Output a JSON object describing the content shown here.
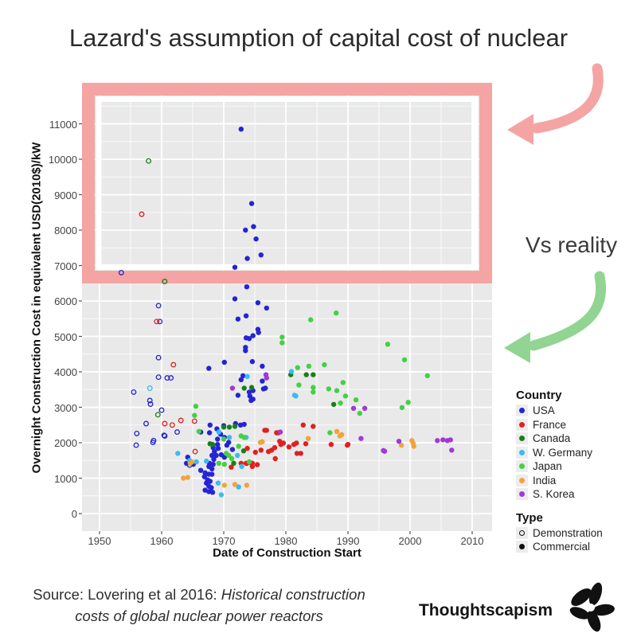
{
  "title": "Lazard's assumption of capital cost of nuclear",
  "annotations": {
    "vs_reality": "Vs reality"
  },
  "source": {
    "prefix": "Source: Lovering et al 2016: ",
    "italic_line1": "Historical construction",
    "italic_line2": "costs of global nuclear power reactors"
  },
  "logo": {
    "text": "Thoughtscapism"
  },
  "colors": {
    "panel_bg": "#e9e9e9",
    "gridline": "#ffffff",
    "highlight_frame_pink": "#f5a4a4",
    "highlight_inner_stroke": "#ffffff",
    "pink_arrow": "#f5a4a4",
    "green_arrow": "#92d492",
    "axis_text": "#444444",
    "title_text": "#2b2b2b"
  },
  "chart_data": {
    "type": "scatter",
    "title": "",
    "xlabel": "Date of Construction Start",
    "ylabel": "Overnight Construction Cost in equivalent USD(2010$)/kW",
    "xlim": [
      1947,
      2013
    ],
    "ylim": [
      0,
      12100
    ],
    "x_ticks": [
      1950,
      1960,
      1970,
      1980,
      1990,
      2000,
      2010
    ],
    "y_ticks": [
      0,
      1000,
      2000,
      3000,
      4000,
      5000,
      6000,
      7000,
      8000,
      9000,
      10000,
      11000
    ],
    "grid": "major-and-minor",
    "legend_position": "right",
    "legend": {
      "country_label": "Country",
      "type_label": "Type",
      "types": [
        {
          "label": "Demonstration",
          "style": "open"
        },
        {
          "label": "Commercial",
          "style": "filled"
        }
      ]
    },
    "highlight_region": {
      "y_from": 6500,
      "y_to": 12100,
      "meaning": "Lazard's assumed capital cost band vs real data below"
    },
    "series": [
      {
        "name": "USA",
        "color": "#2424d4",
        "demonstration": [
          [
            1953.5,
            6800
          ],
          [
            1959.5,
            5870
          ],
          [
            1959.7,
            5420
          ],
          [
            1959.5,
            4400
          ],
          [
            1959.5,
            3850
          ],
          [
            1960.9,
            3830
          ],
          [
            1961.5,
            3830
          ],
          [
            1955.5,
            3430
          ],
          [
            1958.1,
            3190
          ],
          [
            1958.2,
            3090
          ],
          [
            1960.0,
            2920
          ],
          [
            1957.5,
            2540
          ],
          [
            1956.0,
            2260
          ],
          [
            1960.4,
            2210
          ],
          [
            1962.5,
            2300
          ],
          [
            1958.7,
            2060
          ],
          [
            1955.9,
            1930
          ],
          [
            1958.6,
            2010
          ],
          [
            1964.5,
            1370
          ],
          [
            1960.5,
            2190
          ]
        ],
        "commercial": [
          [
            1972.8,
            10850
          ],
          [
            1974.5,
            8750
          ],
          [
            1974.8,
            8100
          ],
          [
            1973.5,
            8000
          ],
          [
            1975.2,
            7750
          ],
          [
            1976.0,
            7300
          ],
          [
            1973.8,
            7200
          ],
          [
            1971.8,
            6950
          ],
          [
            1973.7,
            6400
          ],
          [
            1971.8,
            6060
          ],
          [
            1975.5,
            5950
          ],
          [
            1976.9,
            5800
          ],
          [
            1973.6,
            5580
          ],
          [
            1972.3,
            5490
          ],
          [
            1975.5,
            5200
          ],
          [
            1975.6,
            5110
          ],
          [
            1974.7,
            5020
          ],
          [
            1973.6,
            4960
          ],
          [
            1974.1,
            4940
          ],
          [
            1973.5,
            4690
          ],
          [
            1973.5,
            4600
          ],
          [
            1970.1,
            4270
          ],
          [
            1974.6,
            4290
          ],
          [
            1976.2,
            4160
          ],
          [
            1967.6,
            4100
          ],
          [
            1973.1,
            3890
          ],
          [
            1972.8,
            3780
          ],
          [
            1976.2,
            3740
          ],
          [
            1976.7,
            3540
          ],
          [
            1972.3,
            3340
          ],
          [
            1974.1,
            3430
          ],
          [
            1974.7,
            3470
          ],
          [
            1976.4,
            3520
          ],
          [
            1974.2,
            3320
          ],
          [
            1974.7,
            3230
          ],
          [
            1974.4,
            3190
          ],
          [
            1966.3,
            2300
          ],
          [
            1967.7,
            2280
          ],
          [
            1968.9,
            2390
          ],
          [
            1967.8,
            2500
          ],
          [
            1970.0,
            2480
          ],
          [
            1971.9,
            2540
          ],
          [
            1972.7,
            2500
          ],
          [
            1973.3,
            2520
          ],
          [
            1969.5,
            2240
          ],
          [
            1969.0,
            2100
          ],
          [
            1970.1,
            2150
          ],
          [
            1964.2,
            1590
          ],
          [
            1964.0,
            1420
          ],
          [
            1965.1,
            1390
          ],
          [
            1966.3,
            1220
          ],
          [
            1968.1,
            1640
          ],
          [
            1968.5,
            1750
          ],
          [
            1968.3,
            1860
          ],
          [
            1969.1,
            1840
          ],
          [
            1968.8,
            1640
          ],
          [
            1967.7,
            1420
          ],
          [
            1968.3,
            1390
          ],
          [
            1967.6,
            1330
          ],
          [
            1968.1,
            1260
          ],
          [
            1967.0,
            1150
          ],
          [
            1967.6,
            1110
          ],
          [
            1968.1,
            1110
          ],
          [
            1966.9,
            1040
          ],
          [
            1967.4,
            950
          ],
          [
            1967.8,
            910
          ],
          [
            1967.2,
            860
          ],
          [
            1967.6,
            770
          ],
          [
            1968.0,
            730
          ],
          [
            1967.0,
            660
          ],
          [
            1967.6,
            620
          ],
          [
            1968.2,
            600
          ],
          [
            1970.5,
            1930
          ],
          [
            1970.8,
            2010
          ],
          [
            1971.4,
            1810
          ],
          [
            1969.0,
            1950
          ],
          [
            1969.6,
            1660
          ],
          [
            1970.1,
            1590
          ],
          [
            1968.4,
            1530
          ]
        ]
      },
      {
        "name": "France",
        "color": "#e02020",
        "demonstration": [
          [
            1956.8,
            8450
          ],
          [
            1959.2,
            5420
          ],
          [
            1961.9,
            4200
          ],
          [
            1960.5,
            2540
          ],
          [
            1961.7,
            2500
          ],
          [
            1963.1,
            2630
          ],
          [
            1965.3,
            2610
          ],
          [
            1965.4,
            1750
          ]
        ],
        "commercial": [
          [
            1973.8,
            1840
          ],
          [
            1975.1,
            1730
          ],
          [
            1976.0,
            1790
          ],
          [
            1977.2,
            1750
          ],
          [
            1977.7,
            1790
          ],
          [
            1978.2,
            1860
          ],
          [
            1978.3,
            1550
          ],
          [
            1979.0,
            2040
          ],
          [
            1979.2,
            1950
          ],
          [
            1979.6,
            1990
          ],
          [
            1980.5,
            1880
          ],
          [
            1981.3,
            1950
          ],
          [
            1981.8,
            1700
          ],
          [
            1982.4,
            1700
          ],
          [
            1983.2,
            1970
          ],
          [
            1987.3,
            1950
          ],
          [
            1989.9,
            1930
          ],
          [
            1976.6,
            2350
          ],
          [
            1976.9,
            2350
          ],
          [
            1978.5,
            2280
          ],
          [
            1978.8,
            2280
          ],
          [
            1982.8,
            2500
          ],
          [
            1984.4,
            2460
          ],
          [
            1981.7,
            1990
          ],
          [
            1990.0,
            1950
          ],
          [
            1971.2,
            1310
          ],
          [
            1972.8,
            1420
          ],
          [
            1973.6,
            1420
          ],
          [
            1974.4,
            1430
          ],
          [
            1974.6,
            1420
          ],
          [
            1974.6,
            1330
          ],
          [
            1973.7,
            1420
          ],
          [
            1975.4,
            1380
          ]
        ]
      },
      {
        "name": "Canada",
        "color": "#1a7f1a",
        "demonstration": [
          [
            1957.9,
            9950
          ],
          [
            1959.4,
            2790
          ],
          [
            1960.5,
            6550
          ]
        ],
        "commercial": [
          [
            1967.8,
            1970
          ],
          [
            1968.2,
            1950
          ],
          [
            1970.0,
            2440
          ],
          [
            1970.9,
            2440
          ],
          [
            1971.8,
            2460
          ],
          [
            1973.3,
            3540
          ],
          [
            1974.5,
            3560
          ],
          [
            1980.8,
            3920
          ],
          [
            1983.3,
            3920
          ],
          [
            1984.4,
            3920
          ],
          [
            1987.7,
            3080
          ],
          [
            1973.2,
            1770
          ],
          [
            1971.6,
            1420
          ]
        ]
      },
      {
        "name": "W. Germany",
        "color": "#38bdf0",
        "demonstration": [
          [
            1958.1,
            3540
          ]
        ],
        "commercial": [
          [
            1962.6,
            1700
          ],
          [
            1964.5,
            1500
          ],
          [
            1965.6,
            1460
          ],
          [
            1967.2,
            1480
          ],
          [
            1969.1,
            860
          ],
          [
            1969.2,
            2300
          ],
          [
            1970.9,
            2150
          ],
          [
            1972.2,
            1640
          ],
          [
            1972.9,
            1330
          ],
          [
            1969.6,
            530
          ],
          [
            1972.4,
            750
          ],
          [
            1973.6,
            2150
          ],
          [
            1980.9,
            4010
          ],
          [
            1981.4,
            3340
          ],
          [
            1981.6,
            3320
          ],
          [
            1973.8,
            3870
          ]
        ]
      },
      {
        "name": "Japan",
        "color": "#43d143",
        "demonstration": [],
        "commercial": [
          [
            1965.5,
            3030
          ],
          [
            1965.3,
            2770
          ],
          [
            1966.0,
            2320
          ],
          [
            1970.0,
            2100
          ],
          [
            1970.4,
            1700
          ],
          [
            1970.8,
            1640
          ],
          [
            1971.3,
            1550
          ],
          [
            1969.2,
            1420
          ],
          [
            1970.1,
            1390
          ],
          [
            1972.4,
            1900
          ],
          [
            1973.3,
            2150
          ],
          [
            1974.1,
            1460
          ],
          [
            1972.8,
            2190
          ],
          [
            1979.4,
            4980
          ],
          [
            1979.4,
            4820
          ],
          [
            1984.0,
            5470
          ],
          [
            1988.1,
            5660
          ],
          [
            1996.4,
            4780
          ],
          [
            1999.1,
            4340
          ],
          [
            2002.8,
            3890
          ],
          [
            1981.9,
            4120
          ],
          [
            1983.7,
            4160
          ],
          [
            1986.2,
            4200
          ],
          [
            1982.1,
            3630
          ],
          [
            1984.4,
            3560
          ],
          [
            1984.4,
            3430
          ],
          [
            1986.9,
            3520
          ],
          [
            1988.2,
            3470
          ],
          [
            1989.2,
            3700
          ],
          [
            1989.6,
            3320
          ],
          [
            1991.3,
            3210
          ],
          [
            1988.8,
            3120
          ],
          [
            1991.9,
            2830
          ],
          [
            1998.7,
            2990
          ],
          [
            1999.7,
            3140
          ],
          [
            1987.1,
            2280
          ]
        ]
      },
      {
        "name": "India",
        "color": "#f2a33c",
        "demonstration": [],
        "commercial": [
          [
            1963.5,
            1000
          ],
          [
            1964.2,
            1020
          ],
          [
            1964.9,
            1460
          ],
          [
            1964.6,
            1420
          ],
          [
            1970.1,
            800
          ],
          [
            1971.8,
            820
          ],
          [
            1973.7,
            800
          ],
          [
            1975.9,
            2010
          ],
          [
            1976.2,
            2030
          ],
          [
            1983.6,
            2120
          ],
          [
            1988.2,
            2320
          ],
          [
            1988.7,
            2190
          ],
          [
            1989.0,
            2230
          ],
          [
            1998.6,
            1930
          ],
          [
            2000.3,
            2060
          ],
          [
            2000.5,
            1980
          ],
          [
            2000.6,
            1900
          ]
        ]
      },
      {
        "name": "S. Korea",
        "color": "#9e3bd3",
        "demonstration": [],
        "commercial": [
          [
            1971.4,
            3540
          ],
          [
            1976.8,
            3920
          ],
          [
            1976.9,
            3830
          ],
          [
            1979.1,
            2300
          ],
          [
            1990.9,
            2970
          ],
          [
            1992.7,
            2970
          ],
          [
            1992.1,
            2120
          ],
          [
            1995.7,
            1780
          ],
          [
            1995.9,
            1760
          ],
          [
            1998.2,
            2040
          ],
          [
            2004.4,
            2060
          ],
          [
            2005.3,
            2080
          ],
          [
            2006.0,
            2060
          ],
          [
            2006.5,
            2080
          ],
          [
            2006.7,
            1790
          ]
        ]
      }
    ]
  }
}
